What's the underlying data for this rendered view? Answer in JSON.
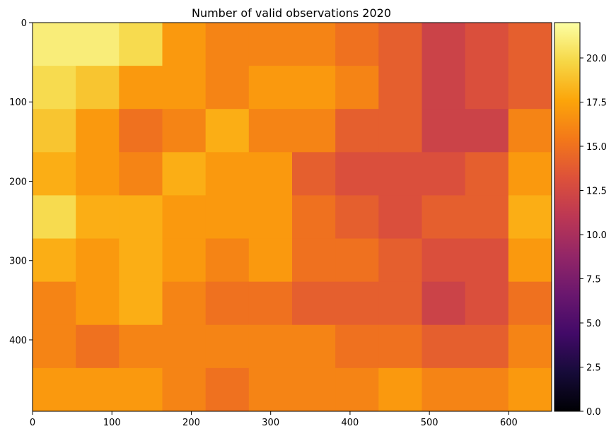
{
  "chart_data": {
    "type": "heatmap",
    "title": "Number of valid observations 2020",
    "xlabel": "",
    "ylabel": "",
    "xlim": [
      0,
      654
    ],
    "ylim": [
      0,
      490
    ],
    "y_inverted": true,
    "x_ticks": [
      0,
      100,
      200,
      300,
      400,
      500,
      600
    ],
    "y_ticks": [
      0,
      100,
      200,
      300,
      400
    ],
    "colormap": "inferno",
    "colorbar": {
      "range": [
        0,
        22
      ],
      "ticks": [
        0.0,
        2.5,
        5.0,
        7.5,
        10.0,
        12.5,
        15.0,
        17.5,
        20.0
      ],
      "tick_labels": [
        "0.0",
        "2.5",
        "5.0",
        "7.5",
        "10.0",
        "12.5",
        "15.0",
        "17.5",
        "20.0"
      ]
    },
    "grid": {
      "cols": 12,
      "rows": 9,
      "cell_width": 54.5,
      "cell_height": 54.44,
      "values": [
        [
          21,
          21,
          20,
          17,
          16,
          16,
          16,
          15,
          14,
          12,
          13,
          14
        ],
        [
          20,
          19,
          17,
          17,
          16,
          17,
          17,
          16,
          14,
          12,
          13,
          14
        ],
        [
          19,
          17,
          15,
          16,
          18,
          16,
          16,
          14,
          14,
          12,
          12,
          16
        ],
        [
          18,
          17,
          16,
          18,
          17,
          17,
          14,
          13,
          13,
          13,
          14,
          17
        ],
        [
          20,
          18,
          18,
          17,
          17,
          17,
          15,
          14,
          13,
          14,
          14,
          18
        ],
        [
          18,
          17,
          18,
          17,
          16,
          17,
          15,
          15,
          14,
          13,
          13,
          17
        ],
        [
          16,
          17,
          18,
          16,
          15,
          15,
          14,
          14,
          14,
          12,
          13,
          15
        ],
        [
          16,
          15,
          16,
          16,
          16,
          16,
          16,
          15,
          15,
          14,
          14,
          16
        ],
        [
          17,
          17,
          17,
          16,
          15,
          16,
          16,
          16,
          17,
          16,
          16,
          17
        ]
      ]
    }
  }
}
